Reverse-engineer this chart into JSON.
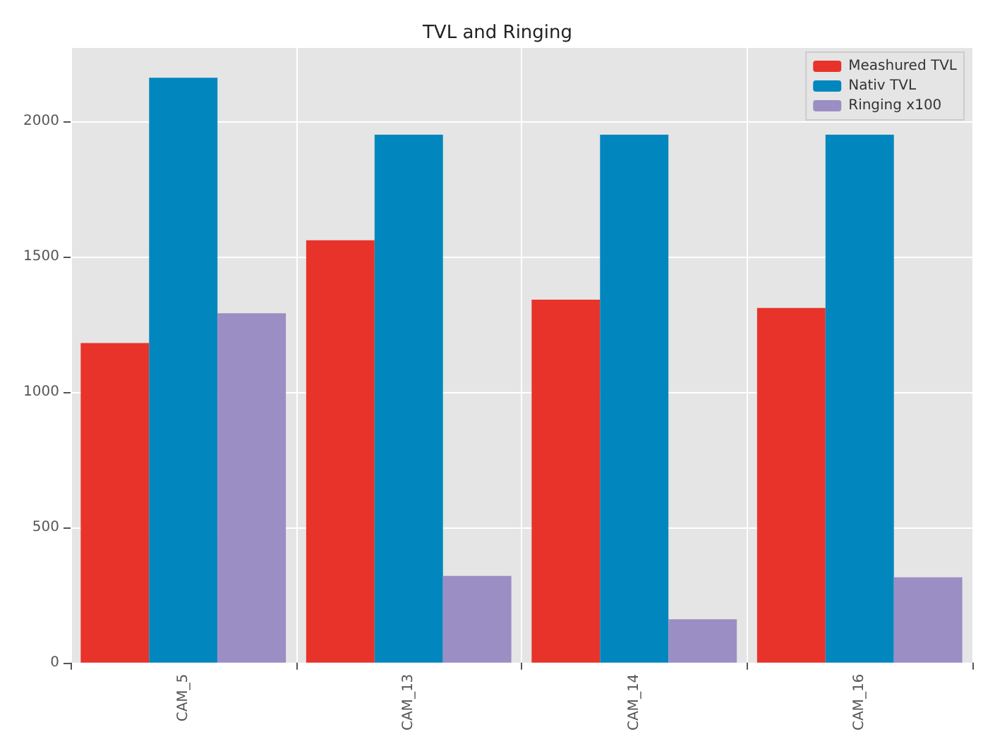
{
  "chart_data": {
    "type": "bar",
    "title": "TVL and Ringing",
    "categories": [
      "CAM_5",
      "CAM_13",
      "CAM_14",
      "CAM_16"
    ],
    "series": [
      {
        "name": "Meashured TVL",
        "color": "#e8332a",
        "values": [
          1180,
          1560,
          1340,
          1310
        ]
      },
      {
        "name": "Nativ TVL",
        "color": "#0187bd",
        "values": [
          2160,
          1950,
          1950,
          1950
        ]
      },
      {
        "name": "Ringing x100",
        "color": "#9b8ec4",
        "values": [
          1290,
          320,
          160,
          315
        ]
      }
    ],
    "ylim": [
      0,
      2270
    ],
    "yticks": [
      0,
      500,
      1000,
      1500,
      2000
    ],
    "grid": true,
    "legend": "top right"
  }
}
